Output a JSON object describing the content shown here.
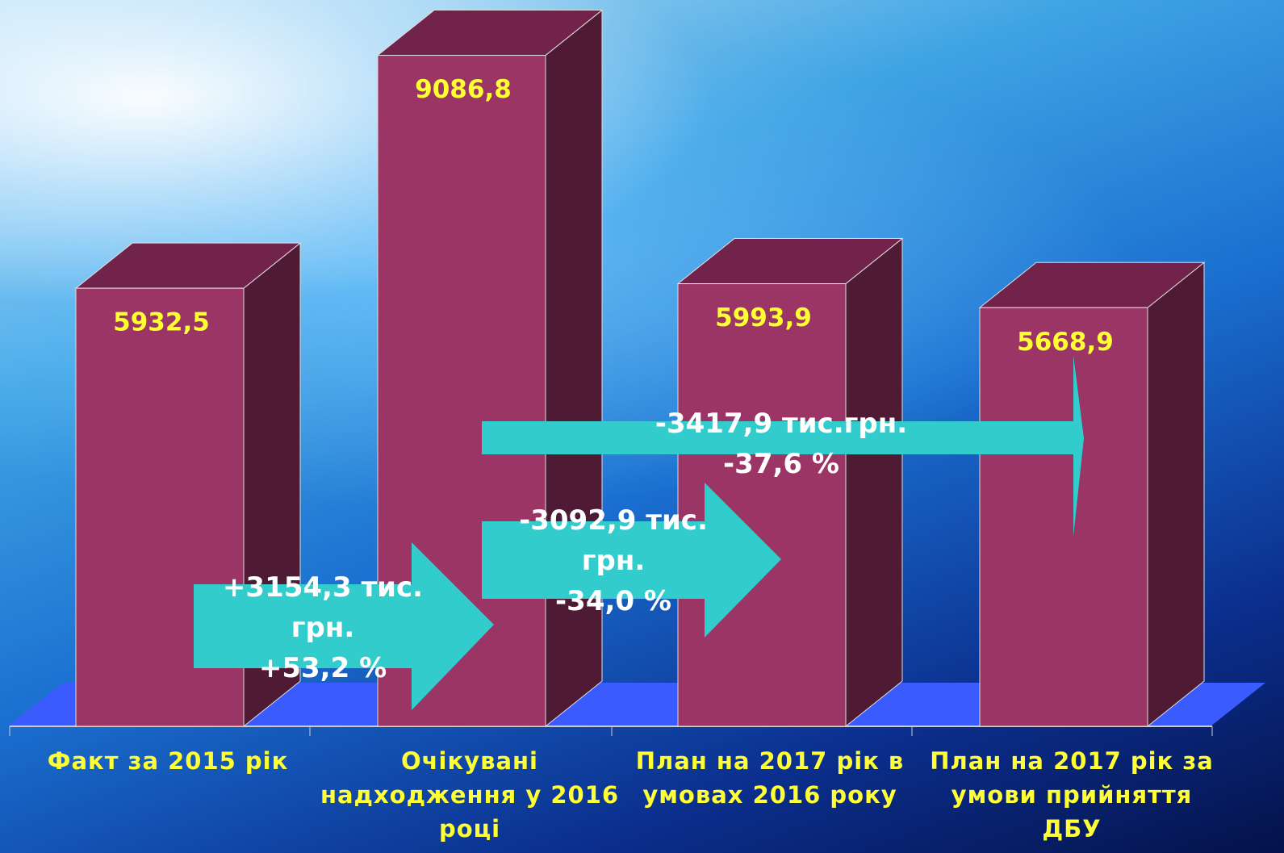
{
  "chart_data": {
    "type": "bar3d",
    "categories": [
      "Факт за 2015 рік",
      "Очікувані надходження у 2016 році",
      "План на 2017 рік в умовах 2016 року",
      "План на 2017 рік за умови прийняття ДБУ"
    ],
    "values": [
      5932.5,
      9086.8,
      5993.9,
      5668.9
    ],
    "value_labels": [
      "5932,5",
      "9086,8",
      "5993,9",
      "5668,9"
    ],
    "color": "#9b3565",
    "annotations": [
      {
        "text": "+3154,3 тис. грн.",
        "change": "+53,2 %"
      },
      {
        "text": "-3092,9 тис. грн.",
        "change": "-34,0 %"
      },
      {
        "text": "-3417,9 тис.грн.",
        "change": "-37,6 %"
      }
    ]
  }
}
